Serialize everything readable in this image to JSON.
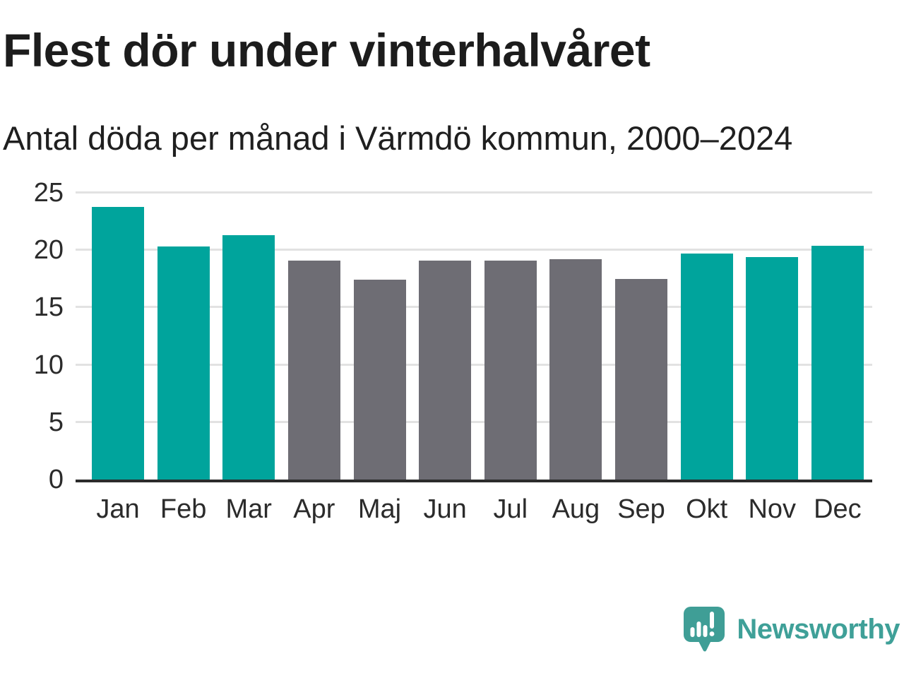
{
  "header": {
    "title": "Flest dör under vinterhalvåret",
    "subtitle": "Antal döda per månad i Värmdö kommun, 2000–2024"
  },
  "chart_data": {
    "type": "bar",
    "title": "Flest dör under vinterhalvåret",
    "subtitle": "Antal döda per månad i Värmdö kommun, 2000–2024",
    "categories": [
      "Jan",
      "Feb",
      "Mar",
      "Apr",
      "Maj",
      "Jun",
      "Jul",
      "Aug",
      "Sep",
      "Okt",
      "Nov",
      "Dec"
    ],
    "values": [
      23.8,
      20.3,
      21.3,
      19.1,
      17.4,
      19.1,
      19.1,
      19.2,
      17.5,
      19.7,
      19.4,
      20.4
    ],
    "highlight": [
      true,
      true,
      true,
      false,
      false,
      false,
      false,
      false,
      false,
      true,
      true,
      true
    ],
    "highlight_color": "#00a49c",
    "base_color": "#6e6d74",
    "xlabel": "",
    "ylabel": "",
    "ylim": [
      0,
      25
    ],
    "yticks": [
      0,
      5,
      10,
      15,
      20,
      25
    ],
    "grid": true,
    "legend": "none"
  },
  "footer": {
    "brand": "Newsworthy",
    "logo_icon": "newsworthy-chart-pin-icon",
    "brand_color": "#3fa098",
    "icon_color": "#3f9e96"
  },
  "colors": {
    "background": "#ffffff",
    "grid_line": "#e2e2e2",
    "axis_line": "#2b2b2b",
    "tick_text": "#2b2b2b",
    "title_text": "#1c1c1c"
  }
}
